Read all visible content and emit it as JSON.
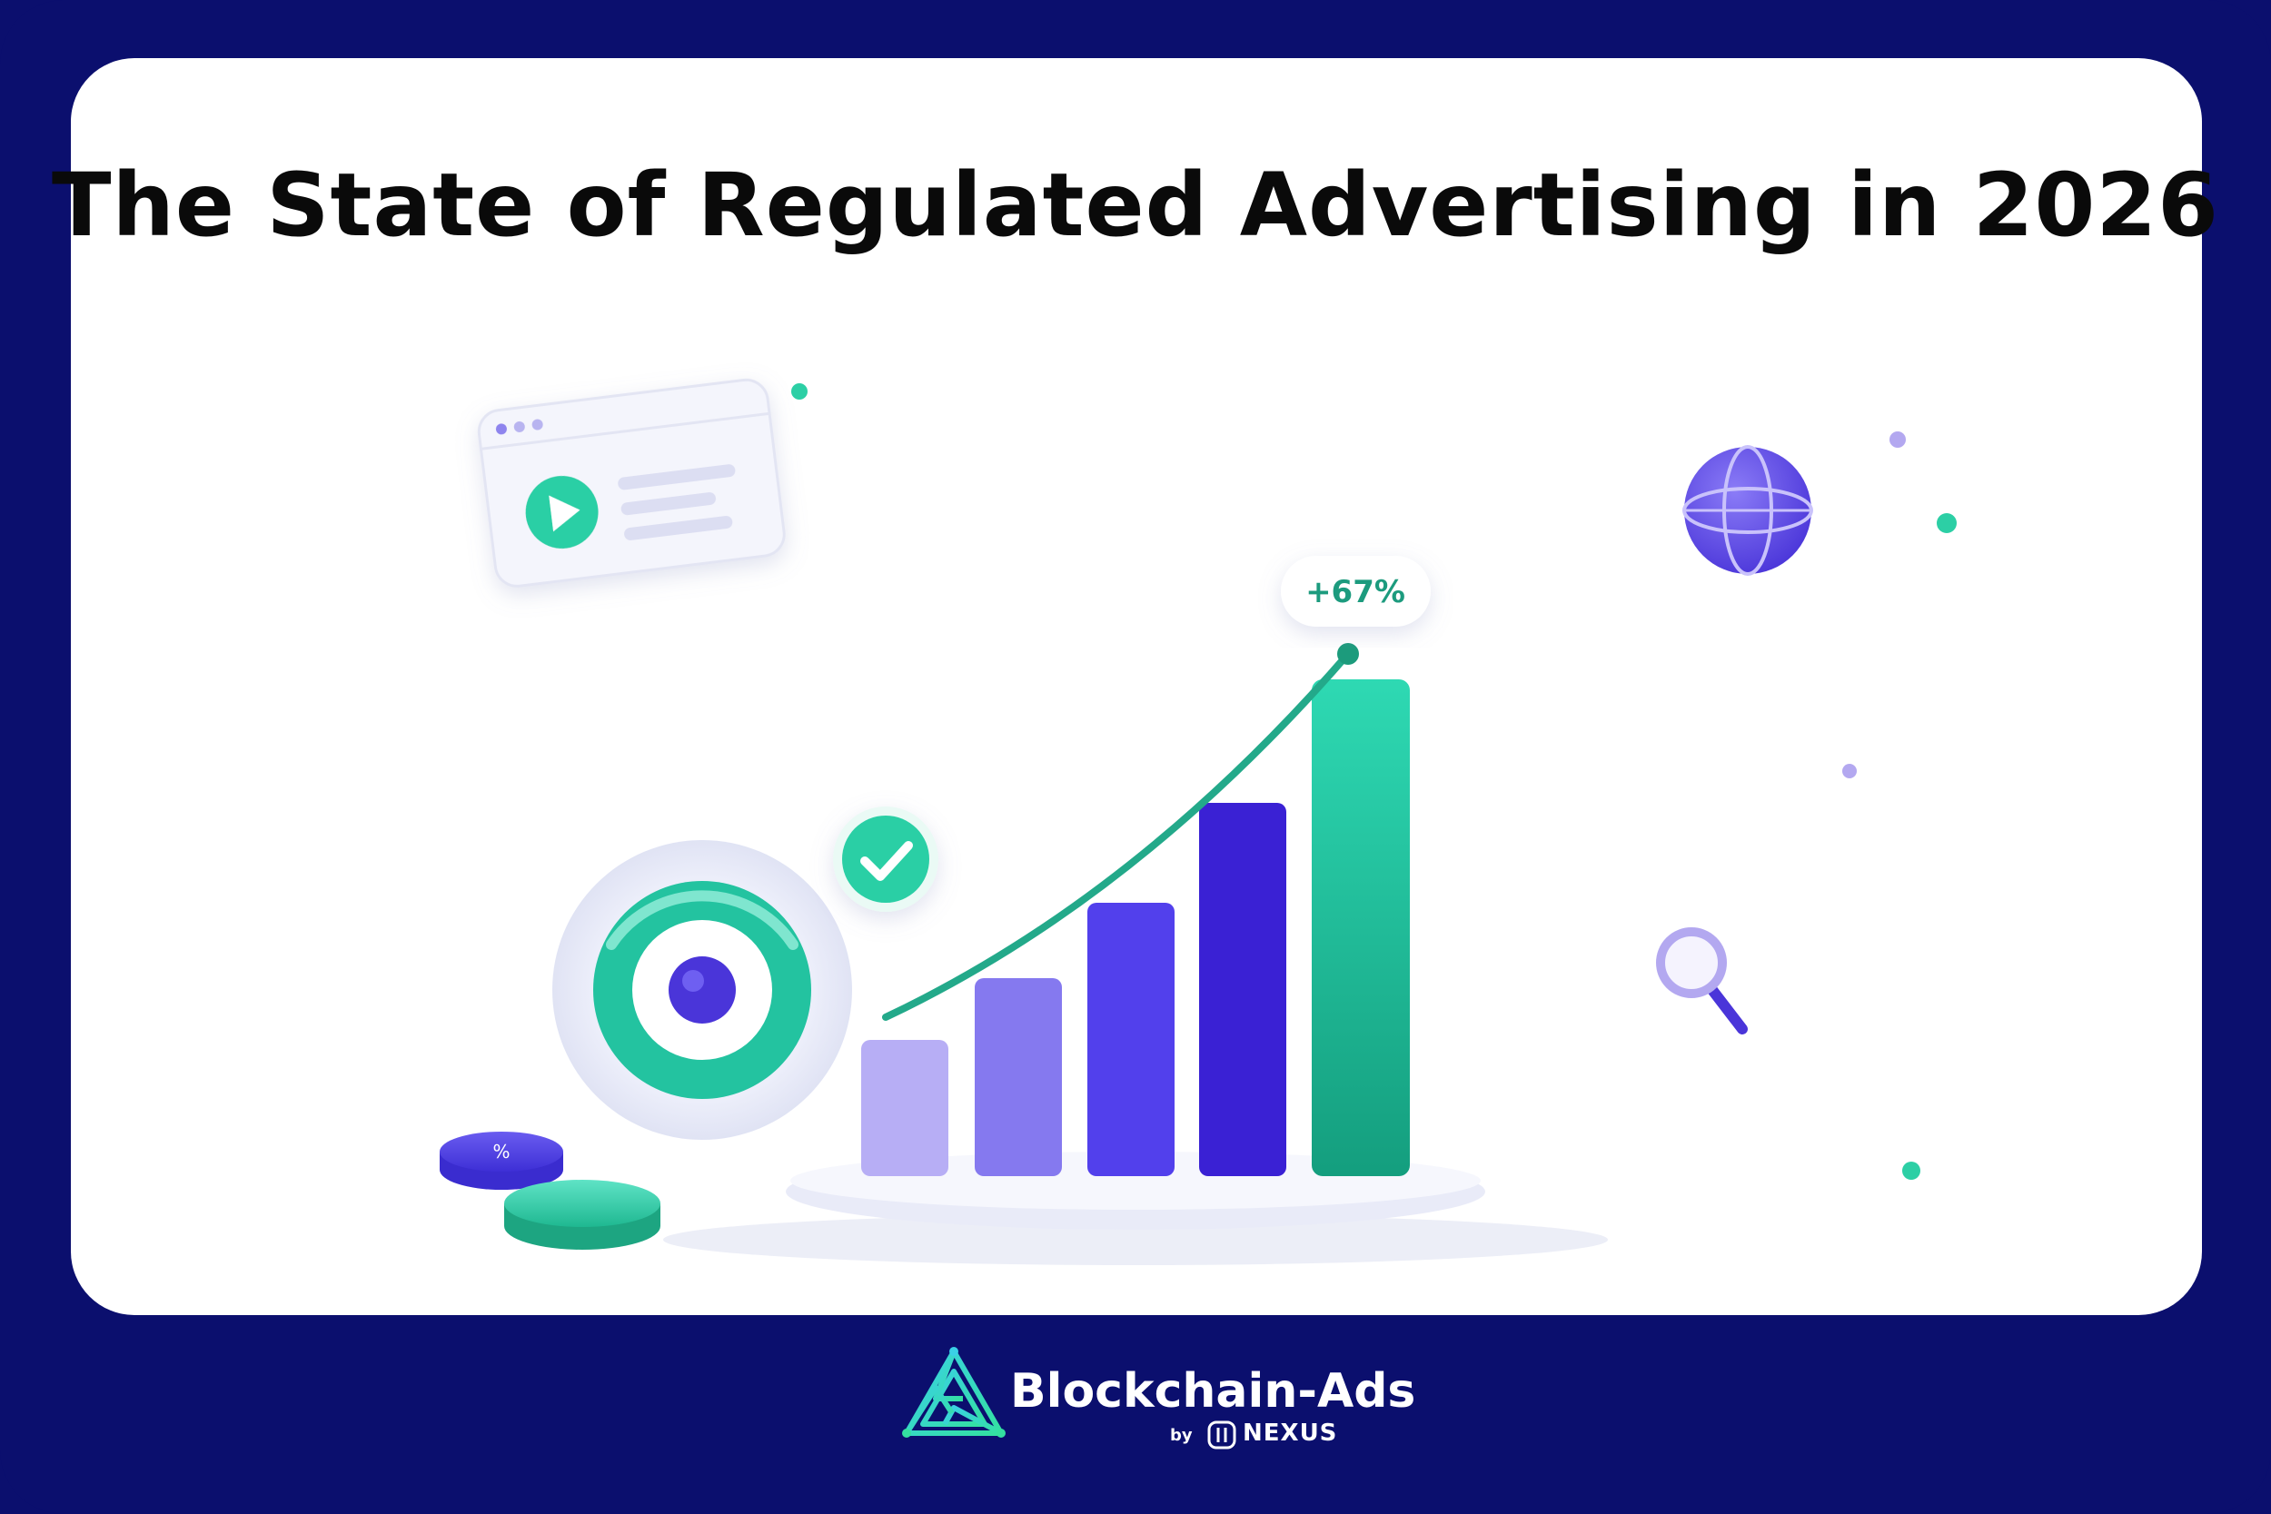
{
  "title": "The State of Regulated Advertising in 2026",
  "badge": {
    "text": "+67%"
  },
  "coin": {
    "label": "%"
  },
  "brand": {
    "name": "Blockchain-Ads",
    "by": "by",
    "partner": "NEXUS"
  },
  "colors": {
    "frame": "#0b0f6e",
    "card": "#ffffff",
    "accent_green": "#23c9a0",
    "accent_purple": "#4a38e6",
    "bar_light": "#b7aef5"
  },
  "icons": [
    "video-player-icon",
    "target-icon",
    "checkmark-icon",
    "globe-icon",
    "magnifier-icon",
    "logo-icon"
  ]
}
